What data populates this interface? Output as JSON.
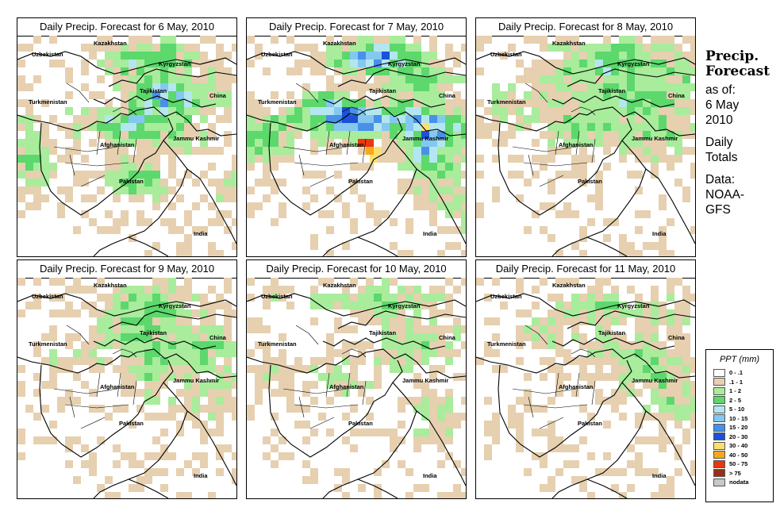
{
  "panels": [
    {
      "title": "Daily Precip. Forecast for  6 May, 2010",
      "day": 6
    },
    {
      "title": "Daily Precip. Forecast for  7 May, 2010",
      "day": 7
    },
    {
      "title": "Daily Precip. Forecast for  8 May, 2010",
      "day": 8
    },
    {
      "title": "Daily Precip. Forecast for  9 May, 2010",
      "day": 9
    },
    {
      "title": "Daily Precip. Forecast for  10 May, 2010",
      "day": 10
    },
    {
      "title": "Daily Precip. Forecast for  11 May, 2010",
      "day": 11
    }
  ],
  "place_labels": {
    "kazakhstan": "Kazakhstan",
    "uzbekistan": "Uzbekistan",
    "kyrgyzstan": "Kyrgyzstan",
    "tajikistan": "Tajikistan",
    "china": "China",
    "turkmenistan": "Turkmenistan",
    "afghanistan": "Afghanistan",
    "jammu_kashmir": "Jammu Kashmir",
    "pakistan": "Pakistan",
    "india": "India"
  },
  "side_title": {
    "line1": "Precip.",
    "line2": "Forecast"
  },
  "side_info": {
    "as_of_label": "as of:",
    "date_day": "6 May",
    "date_year": "2010",
    "totals_1": "Daily",
    "totals_2": "Totals",
    "data_label": "Data:",
    "source_1": "NOAA-",
    "source_2": "GFS"
  },
  "legend": {
    "title": "PPT (mm)",
    "items": [
      {
        "label": "0 - .1",
        "color": "#ffffff"
      },
      {
        "label": ".1 - 1",
        "color": "#e6d0b0"
      },
      {
        "label": "1 - 2",
        "color": "#a8ec9c"
      },
      {
        "label": "2 - 5",
        "color": "#5cd86c"
      },
      {
        "label": "5 - 10",
        "color": "#b4e6f0"
      },
      {
        "label": "10 - 15",
        "color": "#84c8f0"
      },
      {
        "label": "15 - 20",
        "color": "#4890e8"
      },
      {
        "label": "20 - 30",
        "color": "#1c50d8"
      },
      {
        "label": "30 - 40",
        "color": "#f8e070"
      },
      {
        "label": "40 - 50",
        "color": "#f8a818"
      },
      {
        "label": "50 - 75",
        "color": "#e83810"
      },
      {
        "label": "> 75",
        "color": "#983010"
      },
      {
        "label": "nodata",
        "color": "#c8c8c8"
      }
    ]
  }
}
